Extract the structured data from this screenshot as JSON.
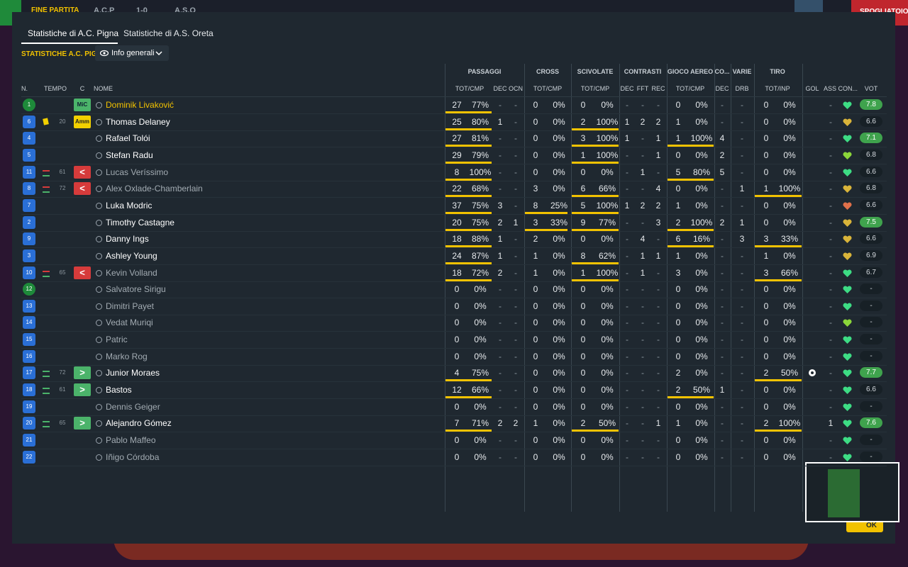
{
  "topbar": {
    "status": "FINE PARTITA",
    "home": "A.C.P",
    "score": "1-0",
    "away": "A.S.O",
    "button": "SPOGLIATOIO",
    "ok": "OK"
  },
  "tabs": [
    "Statistiche di A.C. Pigna",
    "Statistiche di A.S. Oreta"
  ],
  "section": {
    "title": "STATISTICHE A.C. PIGNA",
    "view": "Info generali"
  },
  "header": {
    "groups": [
      "PASSAGGI",
      "CROSS",
      "SCIVOLATE",
      "CONTRASTI",
      "GIOCO AEREO",
      "CO...",
      "VARIE",
      "TIRO"
    ],
    "columns": [
      "N.",
      "TEMPO",
      "C",
      "NOME",
      "TOT/CMP",
      "DEC",
      "OCN",
      "TOT/CMP",
      "TOT/CMP",
      "DEC",
      "FFT",
      "REC",
      "TOT/CMP",
      "DEC",
      "DRB",
      "TOT/INP",
      "GOL",
      "ASS CON...",
      "VOT"
    ]
  },
  "table": {
    "rows": [
      [
        "1",
        null,
        "MiC",
        "Dominik Livaković",
        "27",
        "77%",
        "-",
        "-",
        "0",
        "0%",
        "0",
        "0%",
        "-",
        "-",
        "-",
        "0",
        "0%",
        "-",
        "-",
        "0",
        "0%",
        "-",
        "7.8"
      ],
      [
        "6",
        "20",
        "Amm",
        "Thomas Delaney",
        "25",
        "80%",
        "1",
        "-",
        "0",
        "0%",
        "2",
        "100%",
        "1",
        "2",
        "2",
        "1",
        "0%",
        "-",
        "-",
        "0",
        "0%",
        "-",
        "6.6"
      ],
      [
        "4",
        null,
        null,
        "Rafael Tolói",
        "27",
        "81%",
        "-",
        "-",
        "0",
        "0%",
        "3",
        "100%",
        "1",
        "-",
        "1",
        "1",
        "100%",
        "4",
        "-",
        "0",
        "0%",
        "-",
        "7.1"
      ],
      [
        "5",
        null,
        null,
        "Stefan Radu",
        "29",
        "79%",
        "-",
        "-",
        "0",
        "0%",
        "1",
        "100%",
        "-",
        "-",
        "1",
        "0",
        "0%",
        "2",
        "-",
        "0",
        "0%",
        "-",
        "6.8"
      ],
      [
        "11",
        "61",
        "<",
        "Lucas Veríssimo",
        "8",
        "100%",
        "-",
        "-",
        "0",
        "0%",
        "0",
        "0%",
        "-",
        "1",
        "-",
        "5",
        "80%",
        "5",
        "-",
        "0",
        "0%",
        "-",
        "6.6"
      ],
      [
        "8",
        "72",
        "<",
        "Alex Oxlade-Chamberlain",
        "22",
        "68%",
        "-",
        "-",
        "3",
        "0%",
        "6",
        "66%",
        "-",
        "-",
        "4",
        "0",
        "0%",
        "-",
        "1",
        "1",
        "100%",
        "-",
        "6.8"
      ],
      [
        "7",
        null,
        null,
        "Luka Modric",
        "37",
        "75%",
        "3",
        "-",
        "8",
        "25%",
        "5",
        "100%",
        "1",
        "2",
        "2",
        "1",
        "0%",
        "-",
        "-",
        "0",
        "0%",
        "-",
        "6.6"
      ],
      [
        "2",
        null,
        null,
        "Timothy Castagne",
        "20",
        "75%",
        "2",
        "1",
        "3",
        "33%",
        "9",
        "77%",
        "-",
        "-",
        "3",
        "2",
        "100%",
        "2",
        "1",
        "0",
        "0%",
        "-",
        "7.5"
      ],
      [
        "9",
        null,
        null,
        "Danny Ings",
        "18",
        "88%",
        "1",
        "-",
        "2",
        "0%",
        "0",
        "0%",
        "-",
        "4",
        "-",
        "6",
        "16%",
        "-",
        "3",
        "3",
        "33%",
        "-",
        "6.6"
      ],
      [
        "3",
        null,
        null,
        "Ashley Young",
        "24",
        "87%",
        "1",
        "-",
        "1",
        "0%",
        "8",
        "62%",
        "-",
        "1",
        "1",
        "1",
        "0%",
        "-",
        "-",
        "1",
        "0%",
        "-",
        "6.9"
      ],
      [
        "10",
        "65",
        "<",
        "Kevin Volland",
        "18",
        "72%",
        "2",
        "-",
        "1",
        "0%",
        "1",
        "100%",
        "-",
        "1",
        "-",
        "3",
        "0%",
        "-",
        "-",
        "3",
        "66%",
        "-",
        "6.7"
      ],
      [
        "12",
        null,
        null,
        "Salvatore Sirigu",
        "0",
        "0%",
        "-",
        "-",
        "0",
        "0%",
        "0",
        "0%",
        "-",
        "-",
        "-",
        "0",
        "0%",
        "-",
        "-",
        "0",
        "0%",
        "-",
        "-"
      ],
      [
        "13",
        null,
        null,
        "Dimitri Payet",
        "0",
        "0%",
        "-",
        "-",
        "0",
        "0%",
        "0",
        "0%",
        "-",
        "-",
        "-",
        "0",
        "0%",
        "-",
        "-",
        "0",
        "0%",
        "-",
        "-"
      ],
      [
        "14",
        null,
        null,
        "Vedat Muriqi",
        "0",
        "0%",
        "-",
        "-",
        "0",
        "0%",
        "0",
        "0%",
        "-",
        "-",
        "-",
        "0",
        "0%",
        "-",
        "-",
        "0",
        "0%",
        "-",
        "-"
      ],
      [
        "15",
        null,
        null,
        "Patric",
        "0",
        "0%",
        "-",
        "-",
        "0",
        "0%",
        "0",
        "0%",
        "-",
        "-",
        "-",
        "0",
        "0%",
        "-",
        "-",
        "0",
        "0%",
        "-",
        "-"
      ],
      [
        "16",
        null,
        null,
        "Marko Rog",
        "0",
        "0%",
        "-",
        "-",
        "0",
        "0%",
        "0",
        "0%",
        "-",
        "-",
        "-",
        "0",
        "0%",
        "-",
        "-",
        "0",
        "0%",
        "-",
        "-"
      ],
      [
        "17",
        "72",
        ">",
        "Junior Moraes",
        "4",
        "75%",
        "-",
        "-",
        "0",
        "0%",
        "0",
        "0%",
        "-",
        "-",
        "-",
        "2",
        "0%",
        "-",
        "-",
        "2",
        "50%",
        "-",
        "7.7"
      ],
      [
        "18",
        "61",
        ">",
        "Bastos",
        "12",
        "66%",
        "-",
        "-",
        "0",
        "0%",
        "0",
        "0%",
        "-",
        "-",
        "-",
        "2",
        "50%",
        "1",
        "-",
        "0",
        "0%",
        "-",
        "6.6"
      ],
      [
        "19",
        null,
        null,
        "Dennis Geiger",
        "0",
        "0%",
        "-",
        "-",
        "0",
        "0%",
        "0",
        "0%",
        "-",
        "-",
        "-",
        "0",
        "0%",
        "-",
        "-",
        "0",
        "0%",
        "-",
        "-"
      ],
      [
        "20",
        "65",
        ">",
        "Alejandro Gómez",
        "7",
        "71%",
        "2",
        "2",
        "1",
        "0%",
        "2",
        "50%",
        "-",
        "-",
        "1",
        "1",
        "0%",
        "-",
        "-",
        "2",
        "100%",
        "1",
        "7.6"
      ],
      [
        "21",
        null,
        null,
        "Pablo Maffeo",
        "0",
        "0%",
        "-",
        "-",
        "0",
        "0%",
        "0",
        "0%",
        "-",
        "-",
        "-",
        "0",
        "0%",
        "-",
        "-",
        "0",
        "0%",
        "-",
        "-"
      ],
      [
        "22",
        null,
        null,
        "Iñigo Córdoba",
        "0",
        "0%",
        "-",
        "-",
        "0",
        "0%",
        "0",
        "0%",
        "-",
        "-",
        "-",
        "0",
        "0%",
        "-",
        "-",
        "0",
        "0%",
        "-",
        "-"
      ]
    ],
    "conditions": [
      "#3ddc84",
      "#d9b43a",
      "#3ddc84",
      "#8bd63a",
      "#3ddc84",
      "#d9b43a",
      "#e0704a",
      "#d9b43a",
      "#d9b43a",
      "#d9b43a",
      "#3ddc84",
      "#3ddc84",
      "#3ddc84",
      "#8bd63a",
      "#3ddc84",
      "#3ddc84",
      "#3ddc84",
      "#3ddc84",
      "#3ddc84",
      "#3ddc84",
      "#3ddc84",
      "#3ddc84"
    ]
  }
}
